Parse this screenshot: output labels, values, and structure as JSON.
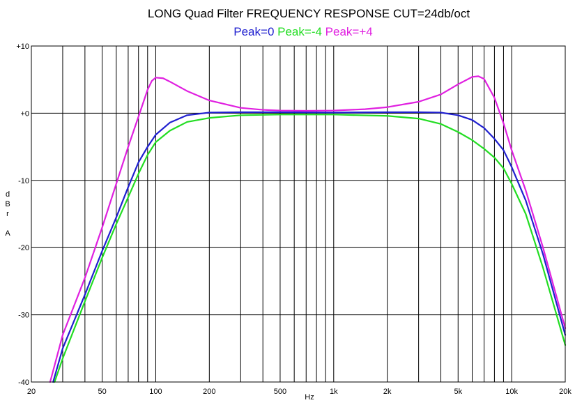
{
  "chart_data": {
    "type": "line",
    "title": "LONG Quad Filter FREQUENCY RESPONSE  CUT=24db/oct",
    "legend": [
      {
        "label": "Peak=0",
        "color": "#1f1fcf"
      },
      {
        "label": "Peak=-4",
        "color": "#22dd22"
      },
      {
        "label": "Peak=+4",
        "color": "#e020e0"
      }
    ],
    "xlabel": "Hz",
    "ylabel_chars": [
      "d",
      "B",
      "r",
      "",
      "A"
    ],
    "x_scale": "log",
    "xlim": [
      20,
      20000
    ],
    "ylim": [
      -40,
      10
    ],
    "x_ticks": [
      {
        "value": 20,
        "label": "20"
      },
      {
        "value": 50,
        "label": "50"
      },
      {
        "value": 100,
        "label": "100"
      },
      {
        "value": 200,
        "label": "200"
      },
      {
        "value": 500,
        "label": "500"
      },
      {
        "value": 1000,
        "label": "1k"
      },
      {
        "value": 2000,
        "label": "2k"
      },
      {
        "value": 5000,
        "label": "5k"
      },
      {
        "value": 10000,
        "label": "10k"
      },
      {
        "value": 20000,
        "label": "20k"
      }
    ],
    "y_ticks": [
      {
        "value": 10,
        "label": "+10"
      },
      {
        "value": 0,
        "label": "+0"
      },
      {
        "value": -10,
        "label": "-10"
      },
      {
        "value": -20,
        "label": "-20"
      },
      {
        "value": -30,
        "label": "-30"
      },
      {
        "value": -40,
        "label": "-40"
      }
    ],
    "grid": true,
    "series": [
      {
        "name": "Peak=0",
        "color": "#1f1fcf",
        "points": [
          [
            26.5,
            -40
          ],
          [
            30,
            -35
          ],
          [
            40,
            -27
          ],
          [
            50,
            -20.5
          ],
          [
            60,
            -15.5
          ],
          [
            70,
            -11
          ],
          [
            80,
            -7.3
          ],
          [
            90,
            -5
          ],
          [
            100,
            -3.2
          ],
          [
            120,
            -1.4
          ],
          [
            150,
            -0.3
          ],
          [
            200,
            0.1
          ],
          [
            300,
            0.15
          ],
          [
            500,
            0.15
          ],
          [
            1000,
            0.1
          ],
          [
            2000,
            0.15
          ],
          [
            3000,
            0.15
          ],
          [
            4000,
            0.1
          ],
          [
            5000,
            -0.3
          ],
          [
            6000,
            -1
          ],
          [
            7000,
            -2.2
          ],
          [
            8000,
            -3.8
          ],
          [
            9000,
            -5.5
          ],
          [
            10000,
            -8
          ],
          [
            12000,
            -13
          ],
          [
            15000,
            -21
          ],
          [
            20000,
            -33
          ]
        ]
      },
      {
        "name": "Peak=-4",
        "color": "#22dd22",
        "points": [
          [
            27,
            -40
          ],
          [
            30,
            -36.5
          ],
          [
            40,
            -28
          ],
          [
            50,
            -21.5
          ],
          [
            60,
            -16.5
          ],
          [
            70,
            -12.5
          ],
          [
            80,
            -9
          ],
          [
            90,
            -6.2
          ],
          [
            100,
            -4.3
          ],
          [
            120,
            -2.6
          ],
          [
            150,
            -1.3
          ],
          [
            200,
            -0.7
          ],
          [
            300,
            -0.3
          ],
          [
            500,
            -0.2
          ],
          [
            1000,
            -0.2
          ],
          [
            2000,
            -0.4
          ],
          [
            3000,
            -0.8
          ],
          [
            4000,
            -1.6
          ],
          [
            5000,
            -2.8
          ],
          [
            6000,
            -4
          ],
          [
            7000,
            -5.3
          ],
          [
            8000,
            -6.6
          ],
          [
            9000,
            -8.2
          ],
          [
            10000,
            -10.5
          ],
          [
            12000,
            -15
          ],
          [
            15000,
            -23
          ],
          [
            20000,
            -34.5
          ]
        ]
      },
      {
        "name": "Peak=+4",
        "color": "#e020e0",
        "points": [
          [
            25.5,
            -40
          ],
          [
            30,
            -33
          ],
          [
            40,
            -24.5
          ],
          [
            50,
            -17
          ],
          [
            60,
            -10.5
          ],
          [
            70,
            -5
          ],
          [
            80,
            -0.5
          ],
          [
            90,
            3.5
          ],
          [
            95,
            4.8
          ],
          [
            100,
            5.3
          ],
          [
            110,
            5.2
          ],
          [
            120,
            4.7
          ],
          [
            150,
            3.3
          ],
          [
            200,
            1.9
          ],
          [
            300,
            0.8
          ],
          [
            400,
            0.5
          ],
          [
            500,
            0.4
          ],
          [
            700,
            0.35
          ],
          [
            1000,
            0.4
          ],
          [
            1500,
            0.6
          ],
          [
            2000,
            0.9
          ],
          [
            3000,
            1.7
          ],
          [
            4000,
            2.8
          ],
          [
            5000,
            4.3
          ],
          [
            6000,
            5.4
          ],
          [
            6500,
            5.5
          ],
          [
            7000,
            5.1
          ],
          [
            8000,
            2.3
          ],
          [
            9000,
            -1.5
          ],
          [
            10000,
            -5.5
          ],
          [
            12000,
            -11.5
          ],
          [
            15000,
            -20
          ],
          [
            20000,
            -32
          ]
        ]
      }
    ]
  }
}
